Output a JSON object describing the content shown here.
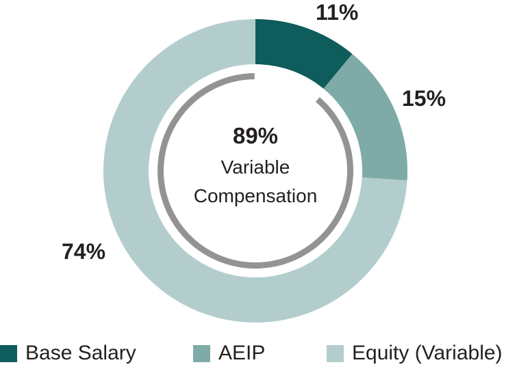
{
  "chart_data": {
    "type": "pie",
    "subtype": "donut",
    "title": "",
    "categories": [
      "Base Salary",
      "AEIP",
      "Equity (Variable)"
    ],
    "values": [
      11,
      15,
      74
    ],
    "labels": [
      "11%",
      "15%",
      "74%"
    ],
    "colors": [
      "#0e5c5c",
      "#7eaba7",
      "#b3cdcd"
    ],
    "center_annotation": {
      "value": "89%",
      "line1": "Variable",
      "line2": "Compensation"
    },
    "inner_arc": {
      "description": "gray arc spanning variable compensation",
      "color": "#939393",
      "covers_percent": 89
    },
    "legend_position": "bottom"
  },
  "labels": {
    "base": "11%",
    "aeip": "15%",
    "equity": "74%"
  },
  "center": {
    "value": "89%",
    "line1": "Variable",
    "line2": "Compensation"
  },
  "legend": [
    {
      "label": "Base Salary",
      "color": "#0e5c5c"
    },
    {
      "label": "AEIP",
      "color": "#7eaba7"
    },
    {
      "label": "Equity (Variable)",
      "color": "#b3cdcd"
    }
  ]
}
